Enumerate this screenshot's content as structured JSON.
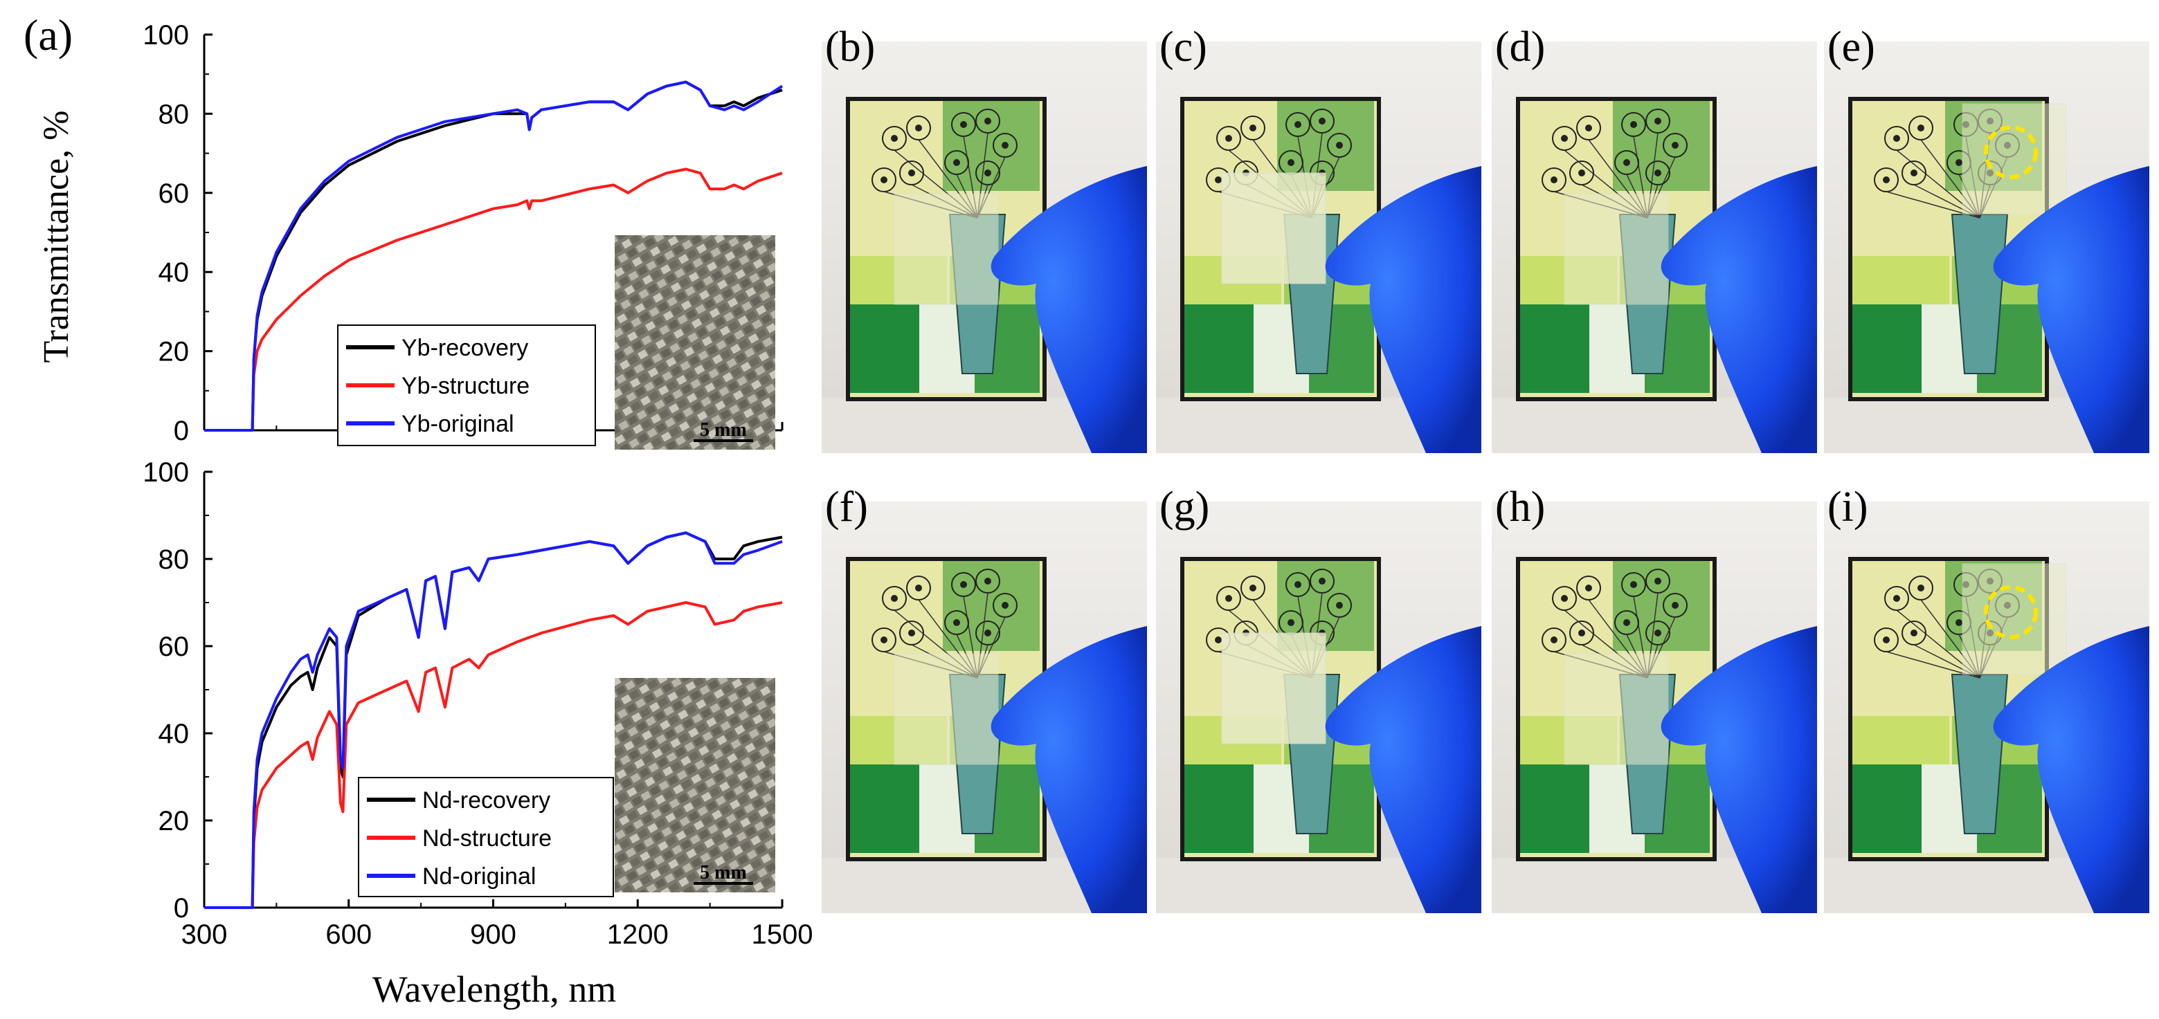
{
  "panel_labels": {
    "a": "(a)",
    "b": "(b)",
    "c": "(c)",
    "d": "(d)",
    "e": "(e)",
    "f": "(f)",
    "g": "(g)",
    "h": "(h)",
    "i": "(i)"
  },
  "y_label": "Transmittance, %",
  "x_label": "Wavelength, nm",
  "scale_bar_label": "5 mm",
  "colors": {
    "recovery": "#000000",
    "structure": "#ff1a1a",
    "original": "#1a1aff"
  },
  "chart_data": [
    {
      "type": "line",
      "panel": "top",
      "xlim": [
        300,
        1500
      ],
      "ylim": [
        0,
        100
      ],
      "x_ticks": [
        300,
        600,
        900,
        1200,
        1500
      ],
      "y_ticks": [
        0,
        20,
        40,
        60,
        80,
        100
      ],
      "legend_placement": "bottom-center",
      "grid": false,
      "series": [
        {
          "name": "Yb-recovery",
          "color": "#000000",
          "points": [
            [
              300,
              0
            ],
            [
              395,
              0
            ],
            [
              400,
              0
            ],
            [
              403,
              18
            ],
            [
              410,
              28
            ],
            [
              420,
              34
            ],
            [
              450,
              44
            ],
            [
              500,
              55
            ],
            [
              550,
              62
            ],
            [
              600,
              67
            ],
            [
              700,
              73
            ],
            [
              800,
              77
            ],
            [
              900,
              80
            ],
            [
              950,
              80
            ],
            [
              970,
              80
            ],
            [
              975,
              76
            ],
            [
              980,
              79
            ],
            [
              1000,
              81
            ],
            [
              1100,
              83
            ],
            [
              1150,
              83
            ],
            [
              1180,
              81
            ],
            [
              1220,
              85
            ],
            [
              1260,
              87
            ],
            [
              1300,
              88
            ],
            [
              1330,
              86
            ],
            [
              1350,
              82
            ],
            [
              1380,
              82
            ],
            [
              1400,
              83
            ],
            [
              1420,
              82
            ],
            [
              1450,
              84
            ],
            [
              1500,
              86
            ]
          ]
        },
        {
          "name": "Yb-structure",
          "color": "#ff1a1a",
          "points": [
            [
              300,
              0
            ],
            [
              395,
              0
            ],
            [
              400,
              0
            ],
            [
              403,
              14
            ],
            [
              410,
              20
            ],
            [
              420,
              23
            ],
            [
              450,
              28
            ],
            [
              500,
              34
            ],
            [
              550,
              39
            ],
            [
              600,
              43
            ],
            [
              700,
              48
            ],
            [
              800,
              52
            ],
            [
              900,
              56
            ],
            [
              950,
              57
            ],
            [
              970,
              58
            ],
            [
              975,
              56
            ],
            [
              980,
              58
            ],
            [
              1000,
              58
            ],
            [
              1100,
              61
            ],
            [
              1150,
              62
            ],
            [
              1180,
              60
            ],
            [
              1220,
              63
            ],
            [
              1260,
              65
            ],
            [
              1300,
              66
            ],
            [
              1330,
              65
            ],
            [
              1350,
              61
            ],
            [
              1380,
              61
            ],
            [
              1400,
              62
            ],
            [
              1420,
              61
            ],
            [
              1450,
              63
            ],
            [
              1500,
              65
            ]
          ]
        },
        {
          "name": "Yb-original",
          "color": "#1a1aff",
          "points": [
            [
              300,
              0
            ],
            [
              395,
              0
            ],
            [
              400,
              0
            ],
            [
              403,
              18
            ],
            [
              410,
              29
            ],
            [
              420,
              35
            ],
            [
              450,
              45
            ],
            [
              500,
              56
            ],
            [
              550,
              63
            ],
            [
              600,
              68
            ],
            [
              700,
              74
            ],
            [
              800,
              78
            ],
            [
              900,
              80
            ],
            [
              950,
              81
            ],
            [
              970,
              80
            ],
            [
              975,
              76
            ],
            [
              980,
              79
            ],
            [
              1000,
              81
            ],
            [
              1100,
              83
            ],
            [
              1150,
              83
            ],
            [
              1180,
              81
            ],
            [
              1220,
              85
            ],
            [
              1260,
              87
            ],
            [
              1300,
              88
            ],
            [
              1330,
              86
            ],
            [
              1350,
              82
            ],
            [
              1380,
              81
            ],
            [
              1400,
              82
            ],
            [
              1420,
              81
            ],
            [
              1450,
              83
            ],
            [
              1500,
              87
            ]
          ]
        }
      ]
    },
    {
      "type": "line",
      "panel": "bottom",
      "xlim": [
        300,
        1500
      ],
      "ylim": [
        0,
        100
      ],
      "x_ticks": [
        300,
        600,
        900,
        1200,
        1500
      ],
      "y_ticks": [
        0,
        20,
        40,
        60,
        80,
        100
      ],
      "legend_placement": "bottom-center",
      "grid": false,
      "series": [
        {
          "name": "Nd-recovery",
          "color": "#000000",
          "points": [
            [
              300,
              0
            ],
            [
              395,
              0
            ],
            [
              400,
              0
            ],
            [
              403,
              20
            ],
            [
              410,
              32
            ],
            [
              420,
              38
            ],
            [
              450,
              46
            ],
            [
              480,
              51
            ],
            [
              500,
              53
            ],
            [
              515,
              54
            ],
            [
              525,
              50
            ],
            [
              535,
              55
            ],
            [
              560,
              62
            ],
            [
              575,
              60
            ],
            [
              583,
              32
            ],
            [
              588,
              30
            ],
            [
              595,
              58
            ],
            [
              620,
              67
            ],
            [
              680,
              71
            ],
            [
              720,
              73
            ],
            [
              745,
              62
            ],
            [
              760,
              75
            ],
            [
              780,
              76
            ],
            [
              800,
              64
            ],
            [
              815,
              77
            ],
            [
              850,
              78
            ],
            [
              870,
              75
            ],
            [
              890,
              80
            ],
            [
              950,
              81
            ],
            [
              1000,
              82
            ],
            [
              1100,
              84
            ],
            [
              1150,
              83
            ],
            [
              1180,
              79
            ],
            [
              1220,
              83
            ],
            [
              1260,
              85
            ],
            [
              1300,
              86
            ],
            [
              1340,
              84
            ],
            [
              1360,
              80
            ],
            [
              1400,
              80
            ],
            [
              1420,
              83
            ],
            [
              1450,
              84
            ],
            [
              1500,
              85
            ]
          ]
        },
        {
          "name": "Nd-structure",
          "color": "#ff1a1a",
          "points": [
            [
              300,
              0
            ],
            [
              395,
              0
            ],
            [
              400,
              0
            ],
            [
              403,
              15
            ],
            [
              410,
              23
            ],
            [
              420,
              27
            ],
            [
              450,
              32
            ],
            [
              480,
              35
            ],
            [
              500,
              37
            ],
            [
              515,
              38
            ],
            [
              525,
              34
            ],
            [
              535,
              39
            ],
            [
              560,
              45
            ],
            [
              575,
              42
            ],
            [
              583,
              24
            ],
            [
              588,
              22
            ],
            [
              595,
              42
            ],
            [
              620,
              47
            ],
            [
              680,
              50
            ],
            [
              720,
              52
            ],
            [
              745,
              45
            ],
            [
              760,
              54
            ],
            [
              780,
              55
            ],
            [
              800,
              46
            ],
            [
              815,
              55
            ],
            [
              850,
              57
            ],
            [
              870,
              55
            ],
            [
              890,
              58
            ],
            [
              950,
              61
            ],
            [
              1000,
              63
            ],
            [
              1100,
              66
            ],
            [
              1150,
              67
            ],
            [
              1180,
              65
            ],
            [
              1220,
              68
            ],
            [
              1260,
              69
            ],
            [
              1300,
              70
            ],
            [
              1340,
              69
            ],
            [
              1360,
              65
            ],
            [
              1400,
              66
            ],
            [
              1420,
              68
            ],
            [
              1450,
              69
            ],
            [
              1500,
              70
            ]
          ]
        },
        {
          "name": "Nd-original",
          "color": "#1a1aff",
          "points": [
            [
              300,
              0
            ],
            [
              395,
              0
            ],
            [
              400,
              0
            ],
            [
              403,
              22
            ],
            [
              410,
              34
            ],
            [
              420,
              40
            ],
            [
              450,
              48
            ],
            [
              480,
              54
            ],
            [
              500,
              57
            ],
            [
              515,
              58
            ],
            [
              525,
              54
            ],
            [
              535,
              58
            ],
            [
              560,
              64
            ],
            [
              575,
              62
            ],
            [
              583,
              34
            ],
            [
              588,
              32
            ],
            [
              595,
              60
            ],
            [
              620,
              68
            ],
            [
              680,
              71
            ],
            [
              720,
              73
            ],
            [
              745,
              62
            ],
            [
              760,
              75
            ],
            [
              780,
              76
            ],
            [
              800,
              64
            ],
            [
              815,
              77
            ],
            [
              850,
              78
            ],
            [
              870,
              75
            ],
            [
              890,
              80
            ],
            [
              950,
              81
            ],
            [
              1000,
              82
            ],
            [
              1100,
              84
            ],
            [
              1150,
              83
            ],
            [
              1180,
              79
            ],
            [
              1220,
              83
            ],
            [
              1260,
              85
            ],
            [
              1300,
              86
            ],
            [
              1340,
              84
            ],
            [
              1360,
              79
            ],
            [
              1400,
              79
            ],
            [
              1420,
              81
            ],
            [
              1450,
              82
            ],
            [
              1500,
              84
            ]
          ]
        }
      ]
    }
  ]
}
